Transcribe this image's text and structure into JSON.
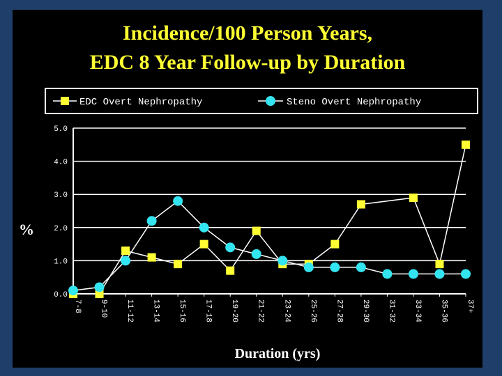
{
  "colors": {
    "background": "#1f3f6a",
    "panel": "#000000",
    "title": "#ffff33",
    "series_edc": "#ffff33",
    "series_steno": "#33e5f0",
    "lines": "#ffffff",
    "grid": "#ffffff"
  },
  "chart_data": {
    "type": "line",
    "title": "Incidence/100 Person Years,",
    "subtitle": "EDC 8 Year Follow-up by Duration",
    "xlabel": "Duration (yrs)",
    "ylabel": "%",
    "categories": [
      "7-8",
      "9-10",
      "11-12",
      "13-14",
      "15-16",
      "17-18",
      "19-20",
      "21-22",
      "23-24",
      "25-26",
      "27-28",
      "29-30",
      "31-32",
      "33-34",
      "35-36",
      "37+"
    ],
    "ylim": [
      0,
      5
    ],
    "yticks": [
      "0.0",
      "1.0",
      "2.0",
      "3.0",
      "4.0",
      "5.0"
    ],
    "grid": true,
    "legend_position": "top",
    "series": [
      {
        "name": "EDC Overt Nephropathy",
        "marker": "square",
        "values": [
          0.0,
          0.0,
          1.3,
          1.1,
          0.9,
          1.5,
          0.7,
          1.9,
          0.9,
          0.9,
          1.5,
          2.7,
          null,
          2.9,
          0.9,
          4.5
        ]
      },
      {
        "name": "Steno Overt Nephropathy",
        "marker": "circle",
        "values": [
          0.1,
          0.2,
          1.0,
          2.2,
          2.8,
          2.0,
          1.4,
          1.2,
          1.0,
          0.8,
          0.8,
          0.8,
          0.6,
          0.6,
          0.6,
          0.6
        ]
      }
    ]
  }
}
